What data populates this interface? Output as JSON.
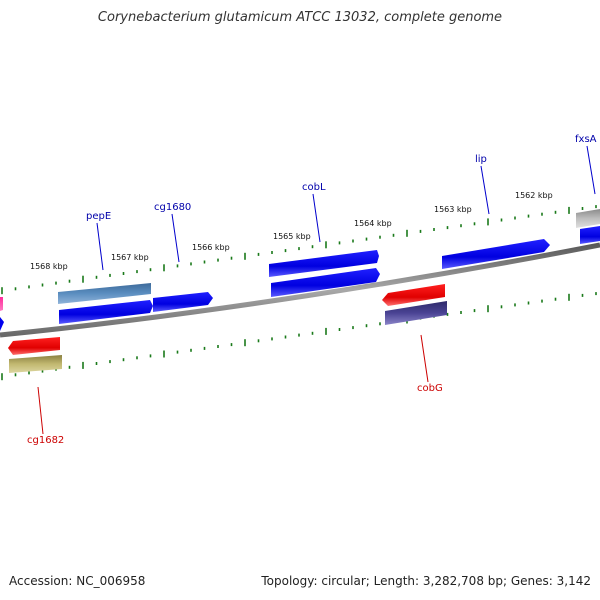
{
  "title": "Corynebacterium glutamicum ATCC 13032, complete genome",
  "footer": {
    "accession": "Accession: NC_006958",
    "summary": "Topology: circular; Length: 3,282,708 bp; Genes: 3,142"
  },
  "ticks": [
    "1568 kbp",
    "1567 kbp",
    "1566 kbp",
    "1565 kbp",
    "1564 kbp",
    "1563 kbp",
    "1562 kbp"
  ],
  "genes": [
    {
      "name": "pepE",
      "strand": "forward",
      "color": "#0000aa"
    },
    {
      "name": "cg1680",
      "strand": "forward",
      "color": "#0000aa"
    },
    {
      "name": "cobL",
      "strand": "forward",
      "color": "#0000aa"
    },
    {
      "name": "lip",
      "strand": "forward",
      "color": "#0000aa"
    },
    {
      "name": "fxsA",
      "strand": "forward",
      "color": "#0000aa"
    },
    {
      "name": "cg1682",
      "strand": "reverse",
      "color": "#cc0000"
    },
    {
      "name": "cobG",
      "strand": "reverse",
      "color": "#cc0000"
    }
  ],
  "colors": {
    "cds_forward": "#0000ee",
    "cds_reverse": "#ee0000",
    "tick": "#1a7a1a",
    "backbone": "#808080"
  }
}
